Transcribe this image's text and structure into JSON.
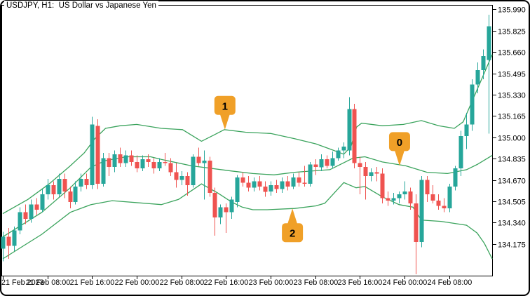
{
  "window": {
    "title": "USDJPY, H1:  US Dollar vs Japanese Yen"
  },
  "colors": {
    "background": "#ffffff",
    "border": "#000000",
    "text": "#000000",
    "bull_candle": "#26a69a",
    "bear_candle": "#ef5350",
    "band_line": "#3aa35c",
    "marker_bg": "#f0a028",
    "marker_text": "#ffffff"
  },
  "chart_data": {
    "type": "candlestick",
    "symbol": "USDJPY",
    "timeframe": "H1",
    "title": "USDJPY, H1: US Dollar vs Japanese Yen",
    "grid": false,
    "legend_position": "none",
    "price_axis": {
      "min": 133.93,
      "max": 136.025,
      "tick_step": 0.165
    },
    "y_ticks": [
      {
        "label": "135.990",
        "price": 135.99
      },
      {
        "label": "135.825",
        "price": 135.825
      },
      {
        "label": "135.660",
        "price": 135.66
      },
      {
        "label": "135.495",
        "price": 135.495
      },
      {
        "label": "135.330",
        "price": 135.33
      },
      {
        "label": "135.165",
        "price": 135.165
      },
      {
        "label": "135.000",
        "price": 135.0
      },
      {
        "label": "134.835",
        "price": 134.835
      },
      {
        "label": "134.670",
        "price": 134.67
      },
      {
        "label": "134.505",
        "price": 134.505
      },
      {
        "label": "134.340",
        "price": 134.34
      },
      {
        "label": "134.175",
        "price": 134.175
      }
    ],
    "x_ticks": [
      {
        "bar_index": 0,
        "label": "21 Feb 2023"
      },
      {
        "bar_index": 8,
        "label": "21 Feb 08:00"
      },
      {
        "bar_index": 16,
        "label": "21 Feb 16:00"
      },
      {
        "bar_index": 24,
        "label": "22 Feb 00:00"
      },
      {
        "bar_index": 32,
        "label": "22 Feb 08:00"
      },
      {
        "bar_index": 40,
        "label": "22 Feb 16:00"
      },
      {
        "bar_index": 48,
        "label": "23 Feb 00:00"
      },
      {
        "bar_index": 56,
        "label": "23 Feb 08:00"
      },
      {
        "bar_index": 64,
        "label": "23 Feb 16:00"
      },
      {
        "bar_index": 72,
        "label": "24 Feb 00:00"
      },
      {
        "bar_index": 80,
        "label": "24 Feb 08:00"
      }
    ],
    "candles_columns": [
      "time",
      "open",
      "high",
      "low",
      "close"
    ],
    "candles": [
      [
        "21 Feb 00:00",
        134.14,
        134.27,
        134.04,
        134.23
      ],
      [
        "21 Feb 01:00",
        134.23,
        134.3,
        134.06,
        134.16
      ],
      [
        "21 Feb 02:00",
        134.16,
        134.31,
        134.12,
        134.28
      ],
      [
        "21 Feb 03:00",
        134.28,
        134.46,
        134.25,
        134.42
      ],
      [
        "21 Feb 04:00",
        134.42,
        134.48,
        134.33,
        134.37
      ],
      [
        "21 Feb 05:00",
        134.37,
        134.52,
        134.34,
        134.48
      ],
      [
        "21 Feb 06:00",
        134.48,
        134.53,
        134.4,
        134.44
      ],
      [
        "21 Feb 07:00",
        134.44,
        134.6,
        134.42,
        134.56
      ],
      [
        "21 Feb 08:00",
        134.56,
        134.68,
        134.52,
        134.63
      ],
      [
        "21 Feb 09:00",
        134.63,
        134.66,
        134.52,
        134.56
      ],
      [
        "21 Feb 10:00",
        134.56,
        134.72,
        134.54,
        134.68
      ],
      [
        "21 Feb 11:00",
        134.68,
        134.72,
        134.53,
        134.58
      ],
      [
        "21 Feb 12:00",
        134.58,
        134.62,
        134.45,
        134.5
      ],
      [
        "21 Feb 13:00",
        134.5,
        134.66,
        134.48,
        134.62
      ],
      [
        "21 Feb 14:00",
        134.62,
        134.72,
        134.58,
        134.68
      ],
      [
        "21 Feb 15:00",
        134.68,
        134.72,
        134.6,
        134.63
      ],
      [
        "21 Feb 16:00",
        134.63,
        135.16,
        134.6,
        135.1
      ],
      [
        "21 Feb 17:00",
        135.09,
        135.14,
        134.6,
        134.64
      ],
      [
        "21 Feb 18:00",
        134.64,
        134.88,
        134.62,
        134.84
      ],
      [
        "21 Feb 19:00",
        134.84,
        134.88,
        134.7,
        134.77
      ],
      [
        "21 Feb 20:00",
        134.77,
        134.9,
        134.73,
        134.87
      ],
      [
        "21 Feb 21:00",
        134.87,
        134.92,
        134.77,
        134.8
      ],
      [
        "21 Feb 22:00",
        134.8,
        134.9,
        134.77,
        134.86
      ],
      [
        "21 Feb 23:00",
        134.86,
        134.9,
        134.78,
        134.81
      ],
      [
        "22 Feb 00:00",
        134.81,
        134.86,
        134.73,
        134.76
      ],
      [
        "22 Feb 01:00",
        134.76,
        134.86,
        134.74,
        134.83
      ],
      [
        "22 Feb 02:00",
        134.83,
        134.87,
        134.77,
        134.81
      ],
      [
        "22 Feb 03:00",
        134.81,
        134.84,
        134.72,
        134.76
      ],
      [
        "22 Feb 04:00",
        134.76,
        134.84,
        134.74,
        134.81
      ],
      [
        "22 Feb 05:00",
        134.81,
        134.88,
        134.78,
        134.8
      ],
      [
        "22 Feb 06:00",
        134.8,
        134.84,
        134.7,
        134.73
      ],
      [
        "22 Feb 07:00",
        134.73,
        134.8,
        134.61,
        134.67
      ],
      [
        "22 Feb 08:00",
        134.67,
        134.74,
        134.63,
        134.7
      ],
      [
        "22 Feb 09:00",
        134.7,
        134.73,
        134.55,
        134.63
      ],
      [
        "22 Feb 10:00",
        134.63,
        134.87,
        134.61,
        134.85
      ],
      [
        "22 Feb 11:00",
        134.85,
        134.92,
        134.78,
        134.8
      ],
      [
        "22 Feb 12:00",
        134.8,
        134.9,
        134.52,
        134.82
      ],
      [
        "22 Feb 13:00",
        134.82,
        134.85,
        134.54,
        134.57
      ],
      [
        "22 Feb 14:00",
        134.57,
        134.61,
        134.24,
        134.38
      ],
      [
        "22 Feb 15:00",
        134.38,
        134.48,
        134.33,
        134.46
      ],
      [
        "22 Feb 16:00",
        134.46,
        134.49,
        134.26,
        134.42
      ],
      [
        "22 Feb 17:00",
        134.42,
        134.54,
        134.37,
        134.52
      ],
      [
        "22 Feb 18:00",
        134.5,
        134.71,
        134.46,
        134.69
      ],
      [
        "22 Feb 19:00",
        134.69,
        134.73,
        134.62,
        134.65
      ],
      [
        "22 Feb 20:00",
        134.65,
        134.7,
        134.58,
        134.61
      ],
      [
        "22 Feb 21:00",
        134.61,
        134.69,
        134.58,
        134.66
      ],
      [
        "22 Feb 22:00",
        134.66,
        134.7,
        134.59,
        134.62
      ],
      [
        "22 Feb 23:00",
        134.62,
        134.66,
        134.54,
        134.58
      ],
      [
        "23 Feb 00:00",
        134.58,
        134.66,
        134.55,
        134.63
      ],
      [
        "23 Feb 01:00",
        134.63,
        134.67,
        134.57,
        134.6
      ],
      [
        "23 Feb 02:00",
        134.6,
        134.69,
        134.57,
        134.66
      ],
      [
        "23 Feb 03:00",
        134.66,
        134.7,
        134.59,
        134.62
      ],
      [
        "23 Feb 04:00",
        134.62,
        134.72,
        134.6,
        134.69
      ],
      [
        "23 Feb 05:00",
        134.69,
        134.73,
        134.62,
        134.65
      ],
      [
        "23 Feb 06:00",
        134.65,
        134.78,
        134.62,
        134.64
      ],
      [
        "23 Feb 07:00",
        134.64,
        134.81,
        134.62,
        134.79
      ],
      [
        "23 Feb 08:00",
        134.79,
        134.83,
        134.71,
        134.77
      ],
      [
        "23 Feb 09:00",
        134.77,
        134.87,
        134.74,
        134.83
      ],
      [
        "23 Feb 10:00",
        134.83,
        134.86,
        134.76,
        134.78
      ],
      [
        "23 Feb 11:00",
        134.78,
        134.89,
        134.76,
        134.84
      ],
      [
        "23 Feb 12:00",
        134.84,
        134.92,
        134.82,
        134.9
      ],
      [
        "23 Feb 13:00",
        134.9,
        134.96,
        134.84,
        134.93
      ],
      [
        "23 Feb 14:00",
        134.9,
        135.31,
        134.86,
        135.22
      ],
      [
        "23 Feb 15:00",
        135.22,
        135.26,
        134.76,
        134.8
      ],
      [
        "23 Feb 16:00",
        134.8,
        134.85,
        134.56,
        134.77
      ],
      [
        "23 Feb 17:00",
        134.77,
        134.81,
        134.52,
        134.7
      ],
      [
        "23 Feb 18:00",
        134.7,
        134.76,
        134.66,
        134.73
      ],
      [
        "23 Feb 19:00",
        134.73,
        134.77,
        134.66,
        134.72
      ],
      [
        "23 Feb 20:00",
        134.72,
        134.76,
        134.49,
        134.53
      ],
      [
        "23 Feb 21:00",
        134.53,
        134.58,
        134.47,
        134.51
      ],
      [
        "23 Feb 22:00",
        134.51,
        134.57,
        134.48,
        134.53
      ],
      [
        "23 Feb 23:00",
        134.53,
        134.58,
        134.49,
        134.56
      ],
      [
        "24 Feb 00:00",
        134.56,
        134.66,
        134.52,
        134.58
      ],
      [
        "24 Feb 01:00",
        134.58,
        134.61,
        134.44,
        134.49
      ],
      [
        "24 Feb 02:00",
        134.49,
        134.56,
        133.94,
        134.19
      ],
      [
        "24 Feb 03:00",
        134.19,
        134.7,
        134.15,
        134.67
      ],
      [
        "24 Feb 04:00",
        134.67,
        134.7,
        134.5,
        134.56
      ],
      [
        "24 Feb 05:00",
        134.56,
        134.63,
        134.49,
        134.51
      ],
      [
        "24 Feb 06:00",
        134.51,
        134.56,
        134.44,
        134.47
      ],
      [
        "24 Feb 07:00",
        134.47,
        134.53,
        134.42,
        134.45
      ],
      [
        "24 Feb 08:00",
        134.45,
        134.64,
        134.42,
        134.62
      ],
      [
        "24 Feb 09:00",
        134.62,
        134.78,
        134.59,
        134.76
      ],
      [
        "24 Feb 10:00",
        134.76,
        135.05,
        134.7,
        135.01
      ],
      [
        "24 Feb 11:00",
        135.01,
        135.19,
        134.91,
        135.1
      ],
      [
        "24 Feb 12:00",
        135.1,
        135.45,
        135.05,
        135.41
      ],
      [
        "24 Feb 13:00",
        135.41,
        135.58,
        135.34,
        135.52
      ],
      [
        "24 Feb 14:00",
        135.52,
        135.68,
        135.45,
        135.63
      ],
      [
        "24 Feb 15:00",
        135.6,
        135.95,
        135.03,
        135.86
      ]
    ],
    "indicator": {
      "name": "Bollinger Bands",
      "bands": {
        "upper": [
          [
            0,
            134.41
          ],
          [
            4.5,
            134.52
          ],
          [
            8.3,
            134.64
          ],
          [
            12.1,
            134.78
          ],
          [
            14.6,
            134.88
          ],
          [
            16.5,
            134.99
          ],
          [
            18.4,
            135.07
          ],
          [
            21,
            135.09
          ],
          [
            24,
            135.1
          ],
          [
            28.4,
            135.07
          ],
          [
            32.2,
            135.06
          ],
          [
            35.6,
            134.97
          ],
          [
            37.9,
            135.02
          ],
          [
            39.7,
            135.06
          ],
          [
            43.5,
            135.04
          ],
          [
            48,
            135.03
          ],
          [
            52.3,
            134.99
          ],
          [
            56.1,
            134.95
          ],
          [
            58.6,
            134.91
          ],
          [
            61.1,
            134.87
          ],
          [
            62.4,
            134.93
          ],
          [
            63.4,
            135.08
          ],
          [
            64.3,
            135.11
          ],
          [
            68,
            135.09
          ],
          [
            71.8,
            135.1
          ],
          [
            75,
            135.13
          ],
          [
            78.1,
            135.09
          ],
          [
            80.9,
            135.07
          ],
          [
            82.5,
            135.12
          ],
          [
            84,
            135.27
          ],
          [
            85.5,
            135.42
          ],
          [
            86.8,
            135.55
          ],
          [
            87.7,
            135.64
          ]
        ],
        "middle": [
          [
            0,
            134.23
          ],
          [
            7,
            134.42
          ],
          [
            12.1,
            134.61
          ],
          [
            15.8,
            134.77
          ],
          [
            18.4,
            134.82
          ],
          [
            22.1,
            134.85
          ],
          [
            26.5,
            134.85
          ],
          [
            28.4,
            134.83
          ],
          [
            33.8,
            134.78
          ],
          [
            41,
            134.74
          ],
          [
            44.8,
            134.72
          ],
          [
            48.6,
            134.71
          ],
          [
            52.3,
            134.73
          ],
          [
            58.6,
            134.75
          ],
          [
            62.8,
            134.84
          ],
          [
            64.9,
            134.85
          ],
          [
            68,
            134.81
          ],
          [
            72.2,
            134.78
          ],
          [
            76,
            134.73
          ],
          [
            79.7,
            134.72
          ],
          [
            83.1,
            134.75
          ],
          [
            85,
            134.79
          ],
          [
            87.7,
            134.86
          ]
        ],
        "lower": [
          [
            0,
            134.06
          ],
          [
            7,
            134.25
          ],
          [
            12.1,
            134.42
          ],
          [
            15.8,
            134.48
          ],
          [
            19.6,
            134.51
          ],
          [
            28.4,
            134.48
          ],
          [
            31.5,
            134.52
          ],
          [
            35.6,
            134.64
          ],
          [
            38.5,
            134.57
          ],
          [
            41,
            134.5
          ],
          [
            42.9,
            134.46
          ],
          [
            44.8,
            134.44
          ],
          [
            47.3,
            134.44
          ],
          [
            52.3,
            134.45
          ],
          [
            56.1,
            134.47
          ],
          [
            57.7,
            134.49
          ],
          [
            61.1,
            134.65
          ],
          [
            63.3,
            134.61
          ],
          [
            64.9,
            134.62
          ],
          [
            68,
            134.54
          ],
          [
            71,
            134.48
          ],
          [
            73.5,
            134.46
          ],
          [
            75,
            134.36
          ],
          [
            78.5,
            134.35
          ],
          [
            83.1,
            134.32
          ],
          [
            85,
            134.26
          ],
          [
            86.3,
            134.18
          ],
          [
            87.7,
            134.06
          ]
        ]
      }
    },
    "markers": [
      {
        "label": "1",
        "band": "upper",
        "bar_index": 39.8,
        "price": 135.06,
        "direction": "down"
      },
      {
        "label": "0",
        "band": "middle",
        "bar_index": 71.1,
        "price": 134.78,
        "direction": "down"
      },
      {
        "label": "2",
        "band": "lower",
        "bar_index": 51.9,
        "price": 134.45,
        "direction": "up"
      }
    ]
  }
}
